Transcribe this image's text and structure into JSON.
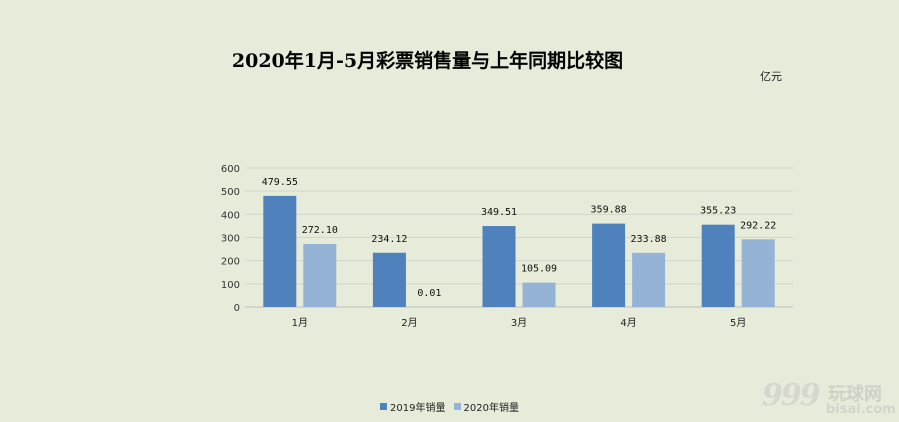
{
  "chart_data": {
    "type": "bar",
    "title": "2020年1月-5月彩票销售量与上年同期比较图",
    "unit": "亿元",
    "categories": [
      "1月",
      "2月",
      "3月",
      "4月",
      "5月"
    ],
    "series": [
      {
        "name": "2019年销量",
        "color": "#4f81bd",
        "values": [
          479.55,
          234.12,
          349.51,
          359.88,
          355.23
        ],
        "labels": [
          "479.55",
          "234.12",
          "349.51",
          "359.88",
          "355.23"
        ]
      },
      {
        "name": "2020年销量",
        "color": "#95b3d7",
        "values": [
          272.1,
          0.01,
          105.09,
          233.88,
          292.22
        ],
        "labels": [
          "272.10",
          "0.01",
          "105.09",
          "233.88",
          "292.22"
        ]
      }
    ],
    "yticks": [
      0,
      100,
      200,
      300,
      400,
      500,
      600
    ],
    "ylim": [
      0,
      600
    ],
    "grid": true,
    "legend": "bottom"
  },
  "watermark": {
    "number": "999",
    "cn": "玩球网",
    "en": "bisai.com"
  }
}
